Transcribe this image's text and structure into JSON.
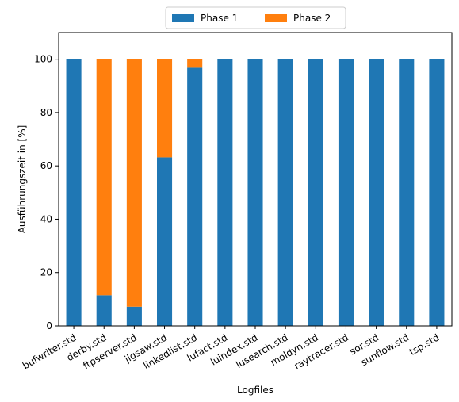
{
  "chart_data": {
    "type": "bar",
    "stacked": true,
    "categories": [
      "bufwriter.std",
      "derby.std",
      "ftpserver.std",
      "jigsaw.std",
      "linkedlist.std",
      "lufact.std",
      "luindex.std",
      "lusearch.std",
      "moldyn.std",
      "raytracer.std",
      "sor.std",
      "sunflow.std",
      "tsp.std"
    ],
    "series": [
      {
        "name": "Phase 1",
        "color": "#1f77b4",
        "values": [
          100,
          11.5,
          7.2,
          63.2,
          96.8,
          100,
          100,
          100,
          100,
          100,
          100,
          100,
          100
        ]
      },
      {
        "name": "Phase 2",
        "color": "#ff7f0e",
        "values": [
          0,
          88.5,
          92.8,
          36.8,
          3.2,
          0,
          0,
          0,
          0,
          0,
          0,
          0,
          0
        ]
      }
    ],
    "xlabel": "Logfiles",
    "ylabel": "Ausführungszeit in [%]",
    "ylim": [
      0,
      110
    ],
    "yticks": [
      0,
      20,
      40,
      60,
      80,
      100
    ],
    "legend": "top-center",
    "grid": false
  }
}
